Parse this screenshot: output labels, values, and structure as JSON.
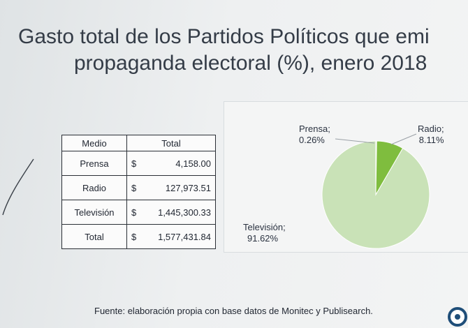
{
  "slide": {
    "title_line1": "Gasto total de los Partidos Políticos que emi",
    "title_line2": "propaganda electoral (%), enero 2018",
    "footer": "Fuente: elaboración propia con base datos de Monitec y Publisearch."
  },
  "table": {
    "headers": [
      "Medio",
      "Total"
    ],
    "currency": "$",
    "rows": [
      {
        "medio": "Prensa",
        "total": "4,158.00"
      },
      {
        "medio": "Radio",
        "total": "127,973.51"
      },
      {
        "medio": "Televisión",
        "total": "1,445,300.33"
      },
      {
        "medio": "Total",
        "total": "1,577,431.84"
      }
    ]
  },
  "chart_data": {
    "type": "pie",
    "categories": [
      "Prensa",
      "Radio",
      "Televisión"
    ],
    "values": [
      0.26,
      8.11,
      91.62
    ],
    "value_labels": [
      "0.26%",
      "8.11%",
      "91.62%"
    ],
    "colors": {
      "Prensa": "#bcd9ab",
      "Radio": "#7fbd3e",
      "Televisión": "#c9e2b7"
    },
    "legend": "none"
  },
  "colors": {
    "table_border": "#2a2f36",
    "pie_edge": "#ffffff",
    "logo_accent": "#1f4e79"
  }
}
